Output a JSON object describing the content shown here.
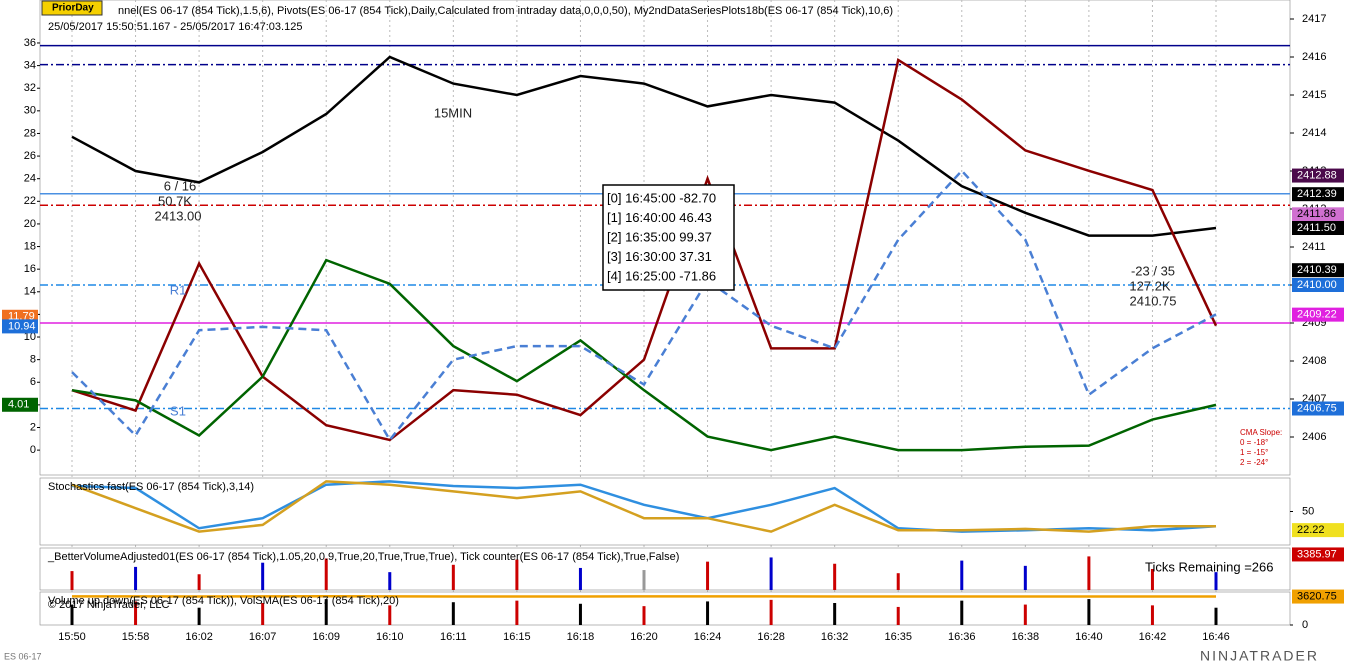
{
  "chart_data": [
    {
      "type": "line",
      "badge": "PriorDay",
      "title": "nnel(ES 06-17 (854 Tick),1.5,6), Pivots(ES 06-17 (854 Tick),Daily,Calculated from intraday data,0,0,0,50), My2ndDataSeriesPlots18b(ES 06-17 (854 Tick),10,6)",
      "subtitle": "25/05/2017 15:50:51.167 - 25/05/2017 16:47:03.125",
      "categories": [
        "15:50",
        "15:58",
        "16:02",
        "16:07",
        "16:09",
        "16:10",
        "16:11",
        "16:15",
        "16:18",
        "16:20",
        "16:24",
        "16:28",
        "16:32",
        "16:35",
        "16:36",
        "16:38",
        "16:40",
        "16:42",
        "16:46"
      ],
      "ylim": [
        -2.2,
        39.8
      ],
      "yticks": [
        0,
        2,
        4,
        6,
        8,
        10,
        12,
        14,
        16,
        18,
        20,
        22,
        24,
        26,
        28,
        30,
        32,
        34,
        36
      ],
      "y2lim": [
        2405,
        2417.5
      ],
      "y2ticks": [
        2406,
        2407,
        2408,
        2409,
        2410,
        2411,
        2412,
        2413,
        2414,
        2415,
        2416,
        2417
      ],
      "series": [
        {
          "color": "#000000",
          "axis": "y2",
          "values": [
            2413.9,
            2413.0,
            2412.7,
            2413.5,
            2414.5,
            2416.0,
            2415.3,
            2415.0,
            2415.5,
            2415.3,
            2414.7,
            2415.0,
            2414.8,
            2413.8,
            2412.6,
            2411.9,
            2411.3,
            2411.3,
            2411.5
          ]
        },
        {
          "color": "#8b0000",
          "values": [
            5.3,
            3.5,
            16.5,
            6.5,
            2.2,
            0.9,
            5.3,
            4.9,
            3.1,
            8,
            24,
            9,
            9,
            34.5,
            31,
            26.5,
            24.7,
            23,
            11
          ]
        },
        {
          "color": "#006400",
          "values": [
            5.3,
            4.4,
            1.3,
            6.5,
            16.8,
            14.7,
            9.2,
            6.1,
            9.7,
            5.3,
            1.2,
            0,
            1.2,
            0,
            0,
            0.3,
            0.4,
            2.7,
            4
          ]
        },
        {
          "color": "#4a7fd4",
          "dash": true,
          "values": [
            6.9,
            1.3,
            10.6,
            10.9,
            10.6,
            0.9,
            8,
            9.2,
            9.2,
            5.8,
            15,
            11,
            9,
            18.6,
            24.7,
            18.6,
            4.9,
            9,
            12
          ]
        }
      ],
      "levels": [
        {
          "value": 2416.3,
          "color": "#00008b"
        },
        {
          "value": 2415.8,
          "color": "#00008b",
          "dash": true
        },
        {
          "value": 2412.4,
          "color": "#4a90e2"
        },
        {
          "value": 2412.1,
          "color": "#cc0000",
          "dash": true
        },
        {
          "value": 2410,
          "color": "#1e88e5",
          "dash": true
        },
        {
          "value": 2409.0,
          "color": "#e020e0"
        },
        {
          "value": 2406.75,
          "color": "#1e88e5",
          "dash": true
        }
      ],
      "price_markers": [
        {
          "value": 2412.88,
          "color": "#4b0a4b"
        },
        {
          "value": 2412.39,
          "color": "#000000"
        },
        {
          "value": 2411.86,
          "color": "#d070d0"
        },
        {
          "value": 2411.5,
          "label": "2411.50",
          "color": "#000000"
        },
        {
          "value": 2410.39,
          "color": "#000000"
        },
        {
          "value": 2410,
          "label": "2410.00",
          "color": "#1e6fd9"
        },
        {
          "value": 2409.22,
          "color": "#e020e0"
        },
        {
          "value": 2406.75,
          "color": "#1e6fd9"
        }
      ],
      "left_markers": [
        {
          "value": 11.79,
          "color": "#f07020"
        },
        {
          "value": 10.94,
          "color": "#1e6fd9"
        },
        {
          "value": 4.01,
          "color": "#006400"
        }
      ],
      "info_box": [
        "[0] 16:45:00  -82.70",
        "[1] 16:40:00  46.43",
        "[2] 16:35:00  99.37",
        "[3] 16:30:00  37.31",
        "[4] 16:25:00  -71.86"
      ],
      "annotations": [
        "6 / 16",
        "50.7K",
        "2413.00",
        "15MIN",
        "-23 / 35",
        "127.2K",
        "2410.75",
        "R1",
        "S1"
      ],
      "cma": [
        "CMA Slope:",
        "0 = -18°",
        "1 = -15°",
        "2 = -24°"
      ],
      "copyright": "© 2017 NinjaTrader, LLC",
      "symbol": "ES 06-17",
      "brand": "NINJATRADER"
    },
    {
      "type": "line",
      "title": "Stochastics fast(ES 06-17 (854 Tick),3,14)",
      "ylim": [
        0,
        100
      ],
      "yticks": [
        50
      ],
      "series": [
        {
          "color": "#2f8fe0",
          "values": [
            88,
            85,
            25,
            40,
            90,
            95,
            88,
            85,
            90,
            60,
            40,
            60,
            85,
            25,
            20,
            22,
            25,
            22,
            28
          ]
        },
        {
          "color": "#d4a020",
          "values": [
            90,
            55,
            20,
            30,
            95,
            90,
            80,
            70,
            80,
            40,
            40,
            20,
            60,
            22,
            22,
            24,
            20,
            28,
            28
          ]
        }
      ],
      "price_markers": [
        {
          "value": 22.22,
          "color": "#f0e020"
        }
      ]
    },
    {
      "type": "bar",
      "title": "_BetterVolumeAdjusted01(ES 06-17 (854 Tick),1.05,20,0.9,True,20,True,True,True), Tick counter(ES 06-17 (854 Tick),True,False)",
      "note": "Ticks Remaining =266",
      "ylim": [
        0,
        4000
      ],
      "values": [
        1800,
        2200,
        1500,
        2600,
        3000,
        1700,
        2400,
        2900,
        2100,
        1900,
        2700,
        3100,
        2500,
        1600,
        2800,
        2300,
        3200,
        2000,
        1700
      ],
      "colors": [
        "#cc0000",
        "#0000cc",
        "#cc0000",
        "#0000cc",
        "#cc0000",
        "#0000cc",
        "#cc0000",
        "#cc0000",
        "#0000cc",
        "#999999",
        "#cc0000",
        "#0000cc",
        "#cc0000",
        "#cc0000",
        "#0000cc",
        "#0000cc",
        "#cc0000",
        "#cc0000",
        "#0000cc"
      ],
      "price_markers": [
        {
          "value": 3385.97,
          "color": "#cc0000"
        }
      ]
    },
    {
      "type": "bar",
      "title": "Volume up down(ES 06-17 (854 Tick)), VolSMA(ES 06-17 (854 Tick),20)",
      "ylim": [
        0,
        4200
      ],
      "yticks": [
        0
      ],
      "values": [
        2600,
        3000,
        2200,
        2800,
        3300,
        2500,
        2900,
        3100,
        2700,
        2400,
        3000,
        3200,
        2800,
        2300,
        3100,
        2600,
        3300,
        2500,
        2200
      ],
      "colors": [
        "#000000",
        "#cc0000",
        "#000000",
        "#cc0000",
        "#000000",
        "#cc0000",
        "#000000",
        "#cc0000",
        "#000000",
        "#cc0000",
        "#000000",
        "#cc0000",
        "#000000",
        "#cc0000",
        "#000000",
        "#cc0000",
        "#000000",
        "#cc0000",
        "#000000"
      ],
      "series": [
        {
          "color": "#f0a000",
          "values": [
            3650,
            3640,
            3630,
            3650,
            3660,
            3640,
            3630,
            3620,
            3630,
            3640,
            3650,
            3640,
            3630,
            3620,
            3620,
            3630,
            3620,
            3620,
            3620
          ]
        }
      ],
      "price_markers": [
        {
          "value": 3620.75,
          "color": "#f0a000"
        }
      ]
    }
  ]
}
